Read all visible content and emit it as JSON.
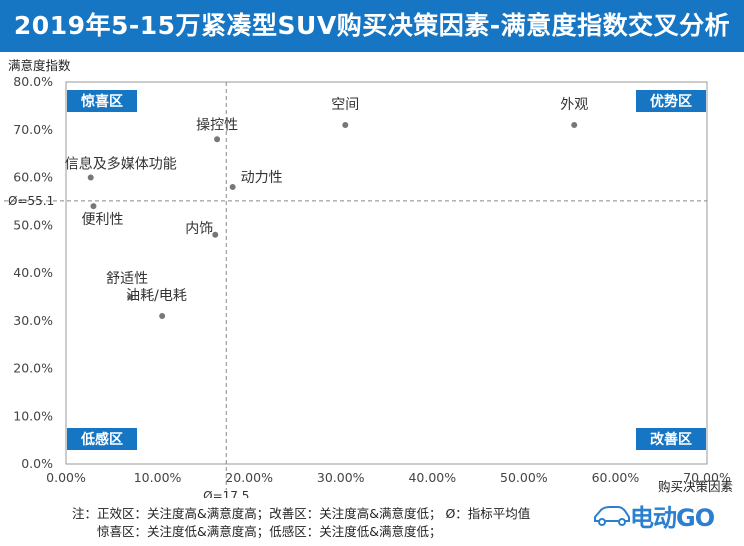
{
  "title": "2019年5-15万紧凑型SUV购买决策因素-满意度指数交叉分析",
  "notes": {
    "line1": "注：正效区：关注度高&满意度高；改善区：关注度高&满意度低；  Ø：指标平均值",
    "line2": "惊喜区：关注度低&满意度高；低感区：关注度低&满意度低；"
  },
  "logo": {
    "text": "电动GO",
    "icon": "car-outline-icon",
    "color": "#2a7fd0"
  },
  "colors": {
    "header": "#1676c4",
    "quadrant_label_bg": "#1676c4",
    "point": "#777777"
  },
  "chart_data": {
    "type": "scatter",
    "title": "",
    "xlabel": "购买决策因素",
    "ylabel": "满意度指数",
    "xlim": [
      0,
      70
    ],
    "ylim": [
      0,
      80
    ],
    "x_ticks": [
      "0.00%",
      "10.00%",
      "20.00%",
      "30.00%",
      "40.00%",
      "50.00%",
      "60.00%",
      "70.00%"
    ],
    "y_ticks": [
      "0.0%",
      "10.0%",
      "20.0%",
      "30.0%",
      "40.0%",
      "50.0%",
      "60.0%",
      "70.0%",
      "80.0%"
    ],
    "x_unit": "%",
    "y_unit": "%",
    "grid": false,
    "reference_lines": {
      "x": 17.5,
      "x_label": "Ø=17.5",
      "y": 55.1,
      "y_label": "Ø=55.1"
    },
    "quadrants": {
      "top_left": "惊喜区",
      "top_right": "优势区",
      "bottom_left": "低感区",
      "bottom_right": "改善区"
    },
    "points": [
      {
        "label": "外观",
        "x": 55.5,
        "y": 71.0
      },
      {
        "label": "空间",
        "x": 30.5,
        "y": 71.0
      },
      {
        "label": "操控性",
        "x": 16.5,
        "y": 68.0
      },
      {
        "label": "动力性",
        "x": 18.2,
        "y": 58.0
      },
      {
        "label": "信息及多媒体功能",
        "x": 2.7,
        "y": 60.0
      },
      {
        "label": "便利性",
        "x": 3.0,
        "y": 54.0
      },
      {
        "label": "内饰",
        "x": 16.3,
        "y": 48.0
      },
      {
        "label": "舒适性",
        "x": 7.0,
        "y": 35.0
      },
      {
        "label": "油耗/电耗",
        "x": 10.5,
        "y": 31.0
      }
    ]
  }
}
